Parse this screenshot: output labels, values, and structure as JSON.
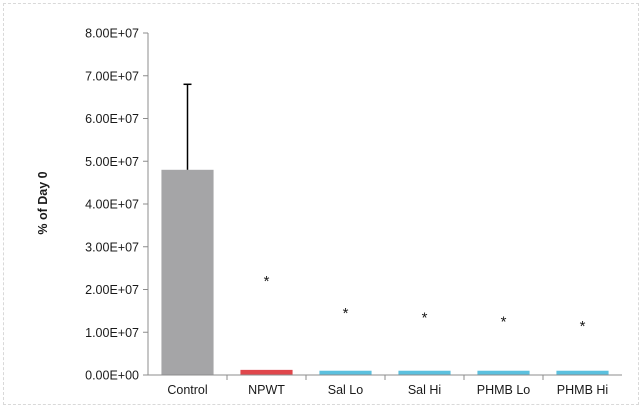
{
  "chart_data": {
    "type": "bar",
    "title": "",
    "xlabel": "",
    "ylabel": "% of Day 0",
    "ylim": [
      0,
      80000000
    ],
    "yticks": [
      0,
      10000000,
      20000000,
      30000000,
      40000000,
      50000000,
      60000000,
      70000000,
      80000000
    ],
    "ytick_labels": [
      "0.00E+00",
      "1.00E+07",
      "2.00E+07",
      "3.00E+07",
      "4.00E+07",
      "5.00E+07",
      "6.00E+07",
      "7.00E+07",
      "8.00E+07"
    ],
    "grid": false,
    "categories": [
      "Control",
      "NPWT",
      "Sal Lo",
      "Sal Hi",
      "PHMB Lo",
      "PHMB Hi"
    ],
    "values": [
      48000000,
      1200000,
      1000000,
      1000000,
      1000000,
      1000000
    ],
    "error_upper": [
      20000000,
      null,
      null,
      null,
      null,
      null
    ],
    "colors": [
      "#a5a5a7",
      "#e0474c",
      "#5bc0de",
      "#5bc0de",
      "#5bc0de",
      "#5bc0de"
    ],
    "annotations": [
      "",
      "*",
      "*",
      "*",
      "*",
      "*"
    ],
    "annotation_y": [
      null,
      22000000,
      14500000,
      13500000,
      12500000,
      11500000
    ]
  }
}
